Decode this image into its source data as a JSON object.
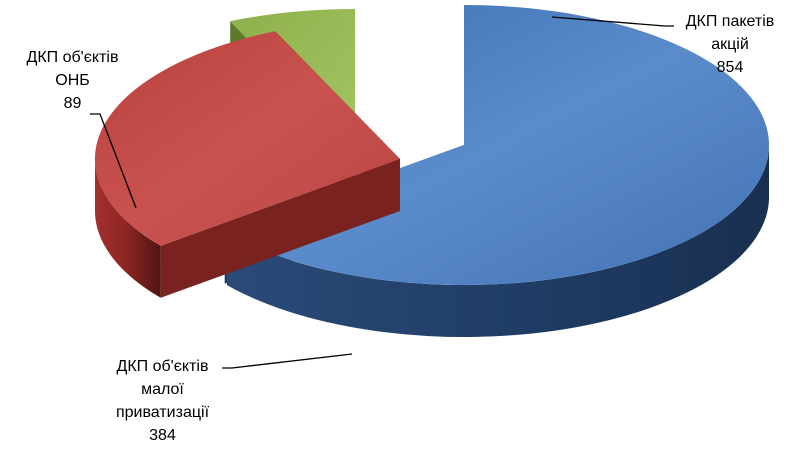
{
  "chart_data": {
    "type": "pie",
    "style": "3d-exploded",
    "title": "",
    "legend": "none",
    "series": [
      {
        "values": [
          854,
          384,
          89
        ],
        "categories": [
          "ДКП пакетів акцій",
          "ДКП об'єктів малої приватизації",
          "ДКП об'єктів ОНБ"
        ]
      }
    ],
    "slices": [
      {
        "label_lines": [
          "ДКП пакетів",
          "акцій"
        ],
        "value": 854,
        "value_text": "854",
        "color": "#4F81BD"
      },
      {
        "label_lines": [
          "ДКП об'єктів",
          "малої",
          "приватизації"
        ],
        "value": 384,
        "value_text": "384",
        "color": "#C0504D"
      },
      {
        "label_lines": [
          "ДКП об'єктів",
          "ОНБ"
        ],
        "value": 89,
        "value_text": "89",
        "color": "#9BBB59"
      }
    ]
  }
}
